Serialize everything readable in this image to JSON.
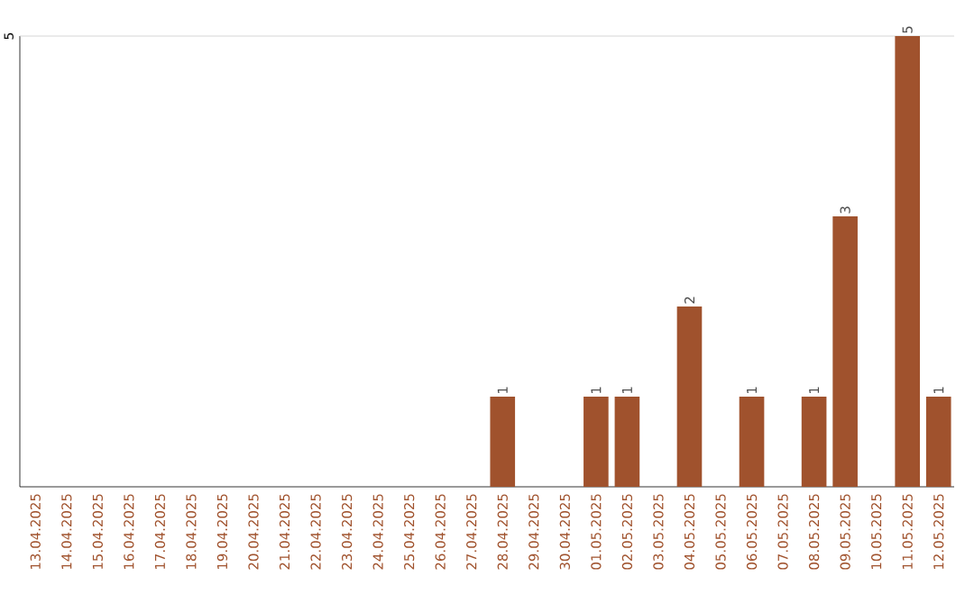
{
  "chart_data": {
    "type": "bar",
    "categories": [
      "13.04.2025",
      "14.04.2025",
      "15.04.2025",
      "16.04.2025",
      "17.04.2025",
      "18.04.2025",
      "19.04.2025",
      "20.04.2025",
      "21.04.2025",
      "22.04.2025",
      "23.04.2025",
      "24.04.2025",
      "25.04.2025",
      "26.04.2025",
      "27.04.2025",
      "28.04.2025",
      "29.04.2025",
      "30.04.2025",
      "01.05.2025",
      "02.05.2025",
      "03.05.2025",
      "04.05.2025",
      "05.05.2025",
      "06.05.2025",
      "07.05.2025",
      "08.05.2025",
      "09.05.2025",
      "10.05.2025",
      "11.05.2025",
      "12.05.2025"
    ],
    "values": [
      null,
      null,
      null,
      null,
      null,
      null,
      null,
      null,
      null,
      null,
      null,
      null,
      null,
      null,
      null,
      1,
      null,
      null,
      1,
      1,
      null,
      2,
      null,
      1,
      null,
      1,
      3,
      null,
      5,
      1
    ],
    "data_labels": true,
    "color": "#a0522d",
    "ylim": [
      0,
      5
    ],
    "yticks": [
      5
    ]
  }
}
